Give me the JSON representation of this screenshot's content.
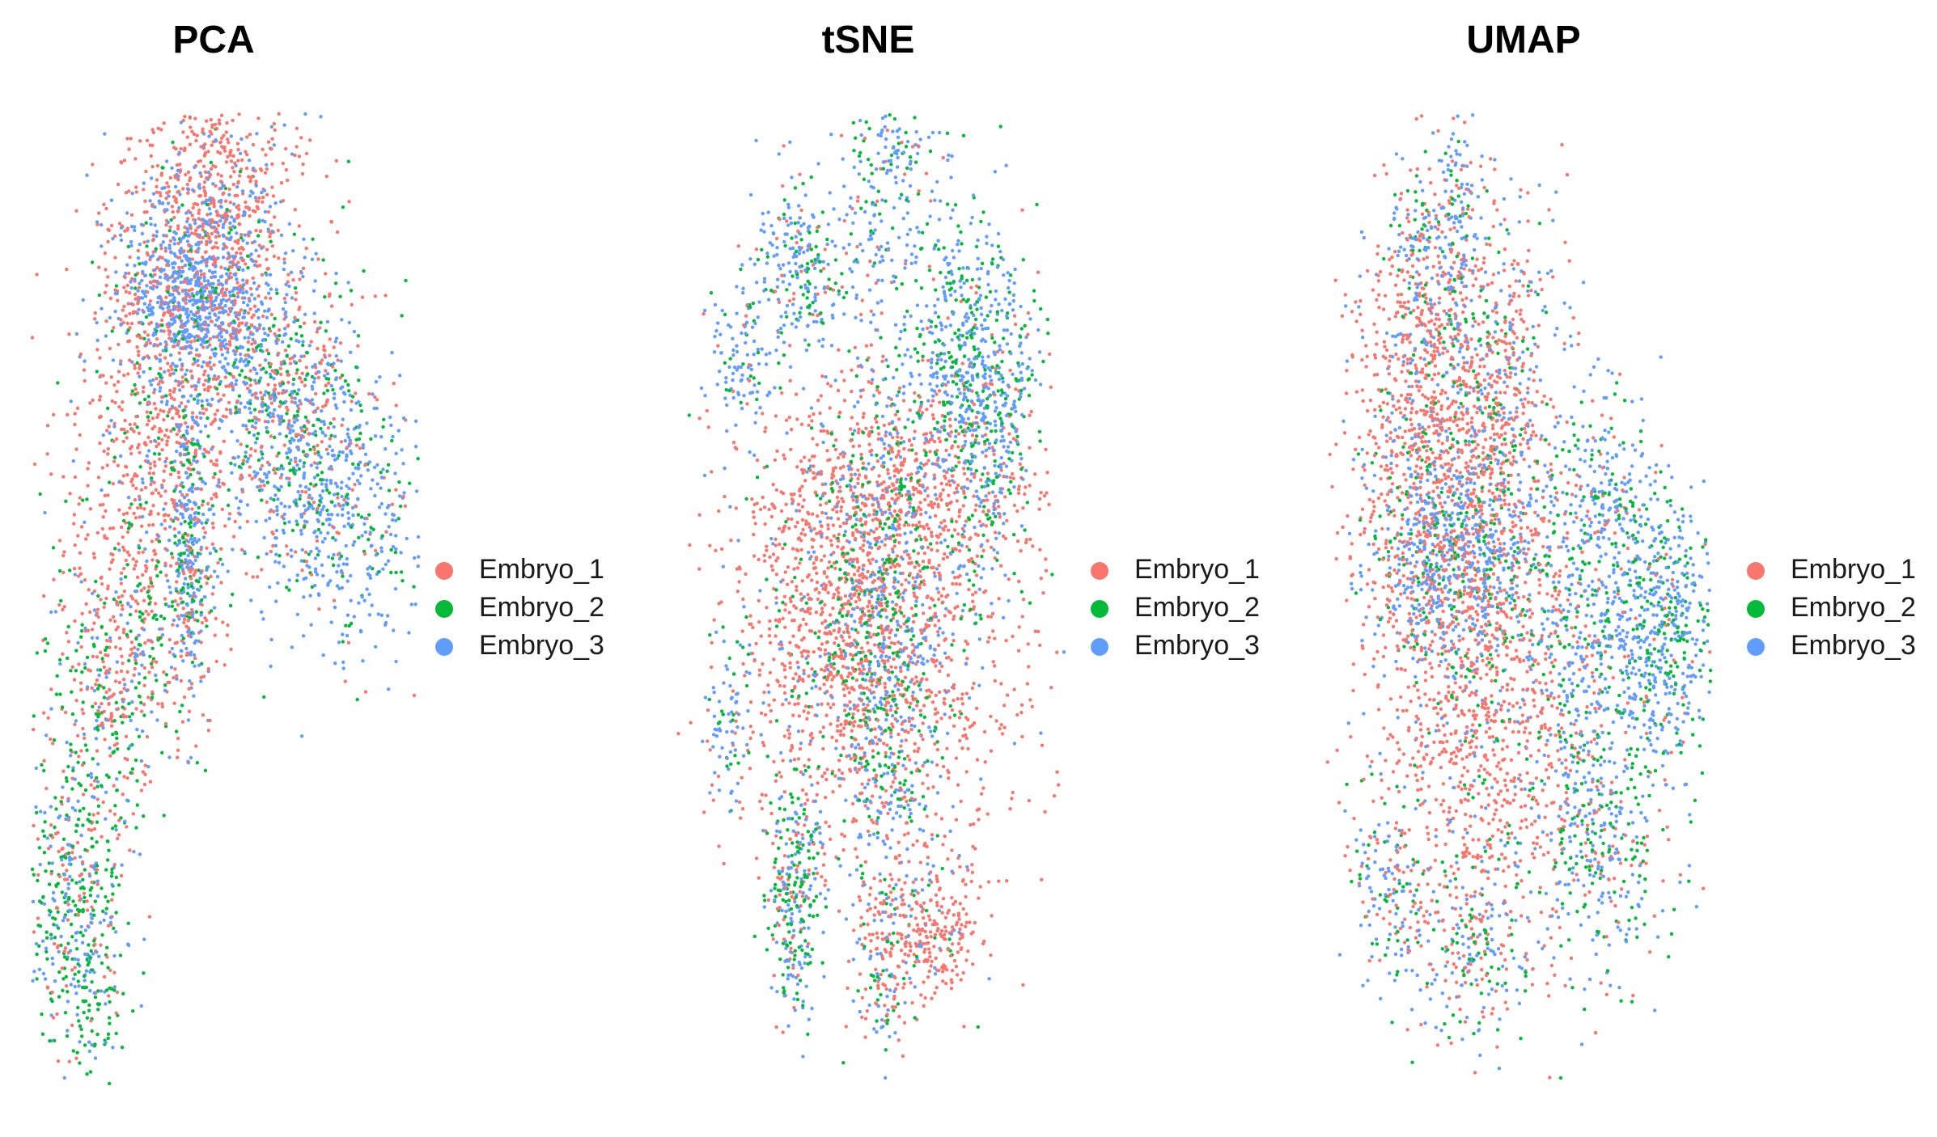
{
  "colors": {
    "Embryo_1": "#F8766D",
    "Embryo_2": "#00BA38",
    "Embryo_3": "#619CFF"
  },
  "chart_data": [
    {
      "type": "scatter",
      "title": "PCA",
      "xlabel": "",
      "ylabel": "",
      "axes_visible": false,
      "grid": false,
      "legend_position": "right",
      "legend": [
        "Embryo_1",
        "Embryo_2",
        "Embryo_3"
      ],
      "series": [
        {
          "name": "Embryo_1",
          "color": "#F8766D"
        },
        {
          "name": "Embryo_2",
          "color": "#00BA38"
        },
        {
          "name": "Embryo_3",
          "color": "#619CFF"
        }
      ]
    },
    {
      "type": "scatter",
      "title": "tSNE",
      "xlabel": "",
      "ylabel": "",
      "axes_visible": false,
      "grid": false,
      "legend_position": "right",
      "legend": [
        "Embryo_1",
        "Embryo_2",
        "Embryo_3"
      ],
      "series": [
        {
          "name": "Embryo_1",
          "color": "#F8766D"
        },
        {
          "name": "Embryo_2",
          "color": "#00BA38"
        },
        {
          "name": "Embryo_3",
          "color": "#619CFF"
        }
      ]
    },
    {
      "type": "scatter",
      "title": "UMAP",
      "xlabel": "",
      "ylabel": "",
      "axes_visible": false,
      "grid": false,
      "legend_position": "right",
      "legend": [
        "Embryo_1",
        "Embryo_2",
        "Embryo_3"
      ],
      "series": [
        {
          "name": "Embryo_1",
          "color": "#F8766D"
        },
        {
          "name": "Embryo_2",
          "color": "#00BA38"
        },
        {
          "name": "Embryo_3",
          "color": "#619CFF"
        }
      ]
    }
  ]
}
